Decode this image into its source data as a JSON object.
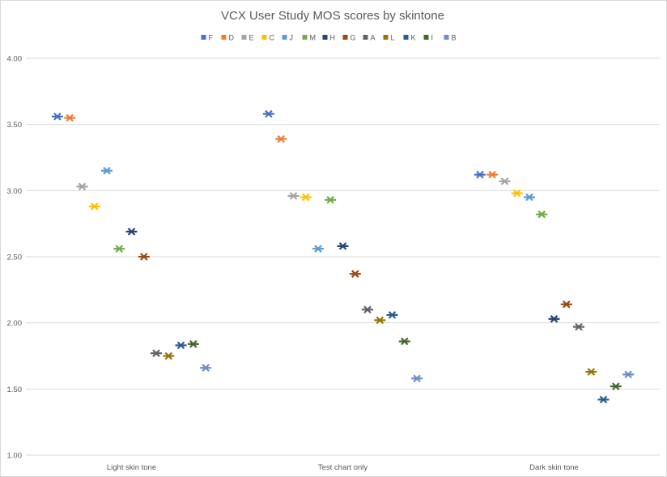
{
  "chart_data": {
    "type": "scatter",
    "title": "VCX User Study MOS scores by skintone",
    "categories": [
      "Light skin tone",
      "Test chart only",
      "Dark skin tone"
    ],
    "ylim": [
      1.0,
      4.0
    ],
    "yticks": [
      "1.00",
      "1.50",
      "2.00",
      "2.50",
      "3.00",
      "3.50",
      "4.00"
    ],
    "grid": true,
    "legend_position": "top",
    "series": [
      {
        "name": "F",
        "color": "#4472c4",
        "values": [
          3.56,
          3.58,
          3.12
        ]
      },
      {
        "name": "D",
        "color": "#ed7d31",
        "values": [
          3.55,
          3.39,
          3.12
        ]
      },
      {
        "name": "E",
        "color": "#a5a5a5",
        "values": [
          3.03,
          2.96,
          3.07
        ]
      },
      {
        "name": "C",
        "color": "#ffc000",
        "values": [
          2.88,
          2.95,
          2.98
        ]
      },
      {
        "name": "J",
        "color": "#5b9bd5",
        "values": [
          3.15,
          2.56,
          2.95
        ]
      },
      {
        "name": "M",
        "color": "#70ad47",
        "values": [
          2.56,
          2.93,
          2.82
        ]
      },
      {
        "name": "H",
        "color": "#264478",
        "values": [
          2.69,
          2.58,
          2.03
        ]
      },
      {
        "name": "G",
        "color": "#9e480e",
        "values": [
          2.5,
          2.37,
          2.14
        ]
      },
      {
        "name": "A",
        "color": "#636363",
        "values": [
          1.77,
          2.1,
          1.97
        ]
      },
      {
        "name": "L",
        "color": "#997300",
        "values": [
          1.75,
          2.02,
          1.63
        ]
      },
      {
        "name": "K",
        "color": "#255e91",
        "values": [
          1.83,
          2.06,
          1.42
        ]
      },
      {
        "name": "I",
        "color": "#43682b",
        "values": [
          1.84,
          1.86,
          1.52
        ]
      },
      {
        "name": "B",
        "color": "#698ed0",
        "values": [
          1.66,
          1.58,
          1.61
        ]
      }
    ]
  }
}
